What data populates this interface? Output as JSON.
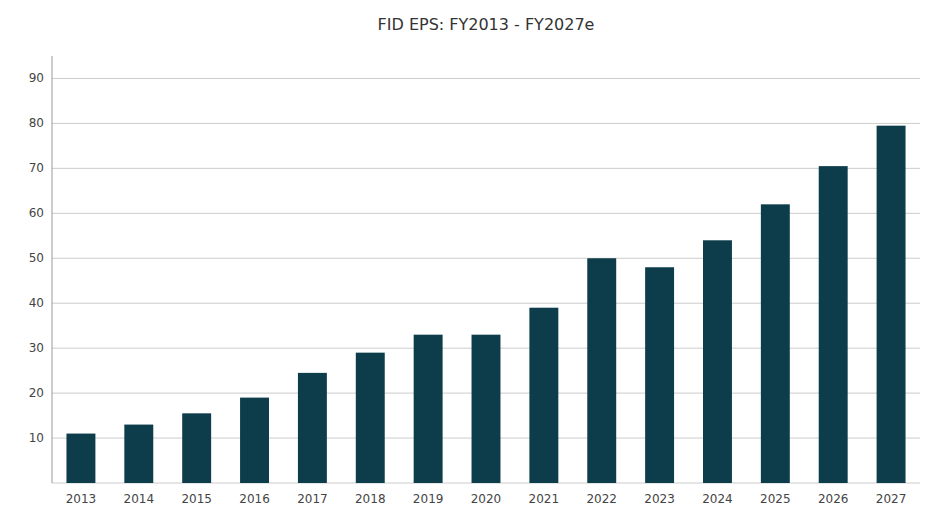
{
  "chart_data": {
    "type": "bar",
    "title": "FID EPS: FY2013 - FY2027e",
    "categories": [
      "2013",
      "2014",
      "2015",
      "2016",
      "2017",
      "2018",
      "2019",
      "2020",
      "2021",
      "2022",
      "2023",
      "2024",
      "2025",
      "2026",
      "2027"
    ],
    "values": [
      11,
      13,
      15.5,
      19,
      24.5,
      29,
      33,
      33,
      39,
      50,
      48,
      54,
      62,
      70.5,
      79.5
    ],
    "color": "#0d3d4a",
    "ylim": [
      0,
      95
    ],
    "yticks": [
      {
        "value": 0,
        "label": null
      },
      10,
      20,
      30,
      40,
      50,
      60,
      70,
      80,
      90
    ],
    "grid": true
  }
}
